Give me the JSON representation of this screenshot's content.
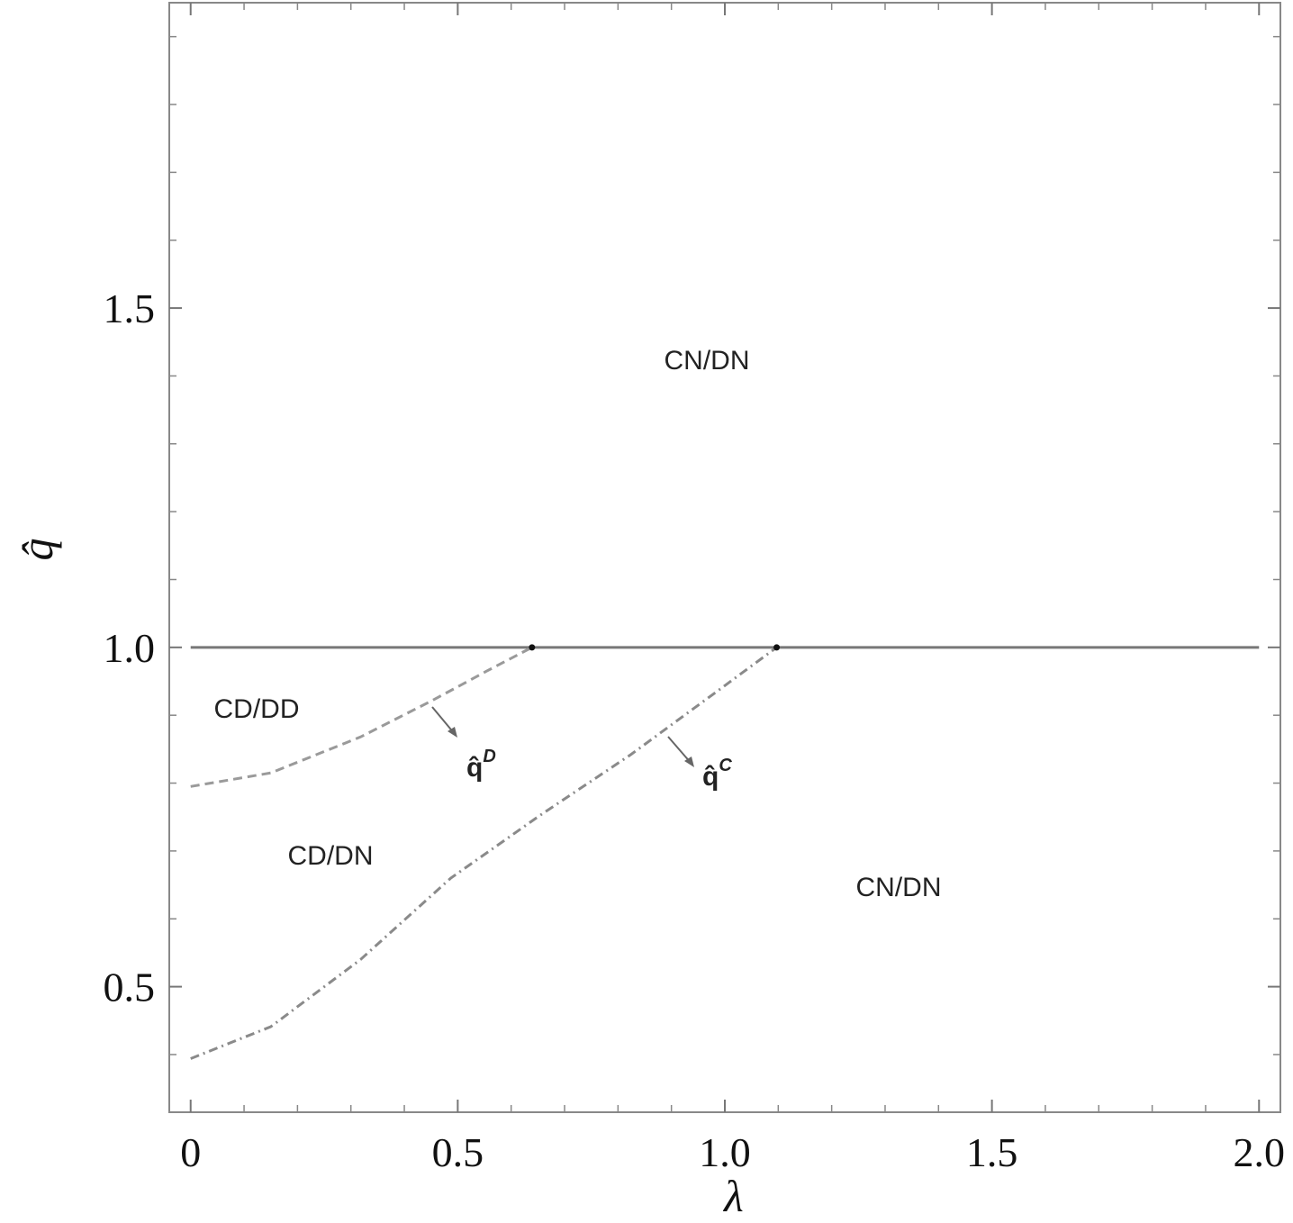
{
  "chart_data": {
    "type": "line",
    "x_label": "λ",
    "y_label": "q̂",
    "xlim": [
      -0.04,
      2.04
    ],
    "ylim": [
      0.315,
      1.95
    ],
    "xticks": [
      0,
      0.5,
      {
        "value": 1,
        "label": "1.0"
      },
      1.5,
      {
        "value": 2,
        "label": "2.0"
      }
    ],
    "yticks": [
      0.5,
      {
        "value": 1,
        "label": "1.0"
      },
      1.5
    ],
    "xminorticks": [
      0.1,
      0.2,
      0.3,
      0.4,
      0.6,
      0.7,
      0.8,
      0.9,
      1.1,
      1.2,
      1.3,
      1.4,
      1.6,
      1.7,
      1.8,
      1.9
    ],
    "yminorticks": [
      0.4,
      0.6,
      0.7,
      0.8,
      0.9,
      1.1,
      1.2,
      1.3,
      1.4,
      1.6,
      1.7,
      1.8,
      1.9
    ],
    "series": [
      {
        "color": "#777777",
        "style": "solid",
        "x": [
          0,
          2
        ],
        "values": [
          1,
          1
        ]
      },
      {
        "color": "#9a9a9a",
        "style": "dashed",
        "x": [
          0,
          0.15,
          0.318,
          0.453,
          0.554,
          0.639
        ],
        "values": [
          0.795,
          0.815,
          0.868,
          0.922,
          0.965,
          1.0
        ]
      },
      {
        "color": "#8a8a8a",
        "style": "dashdot",
        "x": [
          0,
          0.15,
          0.318,
          0.487,
          0.655,
          0.824,
          0.992,
          1.097
        ],
        "values": [
          0.394,
          0.441,
          0.54,
          0.66,
          0.753,
          0.842,
          0.939,
          1.0
        ]
      }
    ],
    "annotations": [
      {
        "text": "CN/DN"
      },
      {
        "text": "CD/DD"
      },
      {
        "text": "CD/DN"
      },
      {
        "text": "CN/DN"
      },
      {
        "text": "q̂",
        "superscript": "D"
      },
      {
        "text": "q̂",
        "superscript": "C"
      }
    ]
  }
}
